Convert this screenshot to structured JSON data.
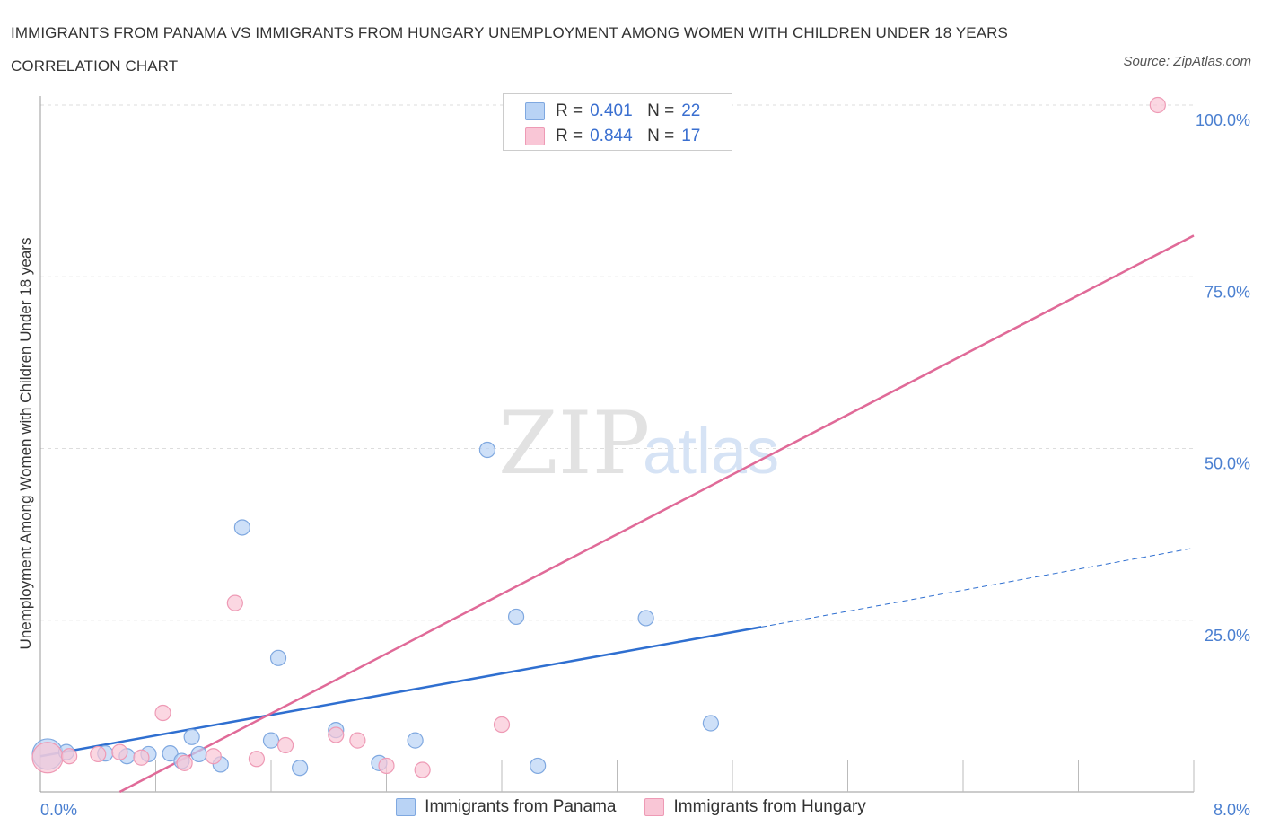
{
  "header": {
    "title": "IMMIGRANTS FROM PANAMA VS IMMIGRANTS FROM HUNGARY UNEMPLOYMENT AMONG WOMEN WITH CHILDREN UNDER 18 YEARS CORRELATION CHART",
    "source": "Source: ZipAtlas.com"
  },
  "legend": {
    "r_label": "R =",
    "n_label": "N =",
    "panama": {
      "r": "0.401",
      "n": "22"
    },
    "hungary": {
      "r": "0.844",
      "n": "17"
    }
  },
  "watermark": {
    "zip": "ZIP",
    "atlas": "atlas"
  },
  "colors": {
    "panama_fill": "#b9d3f5",
    "panama_stroke": "#7fa8e0",
    "panama_line": "#2f6fd0",
    "hungary_fill": "#f9c6d6",
    "hungary_stroke": "#ee9ab5",
    "hungary_line": "#e06a98",
    "grid": "#dddddd",
    "tick_text": "#4a7fd0"
  },
  "chart_data": {
    "type": "scatter",
    "title": "IMMIGRANTS FROM PANAMA VS IMMIGRANTS FROM HUNGARY UNEMPLOYMENT AMONG WOMEN WITH CHILDREN UNDER 18 YEARS CORRELATION CHART",
    "xlabel": "",
    "ylabel": "Unemployment Among Women with Children Under 18 years",
    "xlim": [
      0,
      8
    ],
    "ylim": [
      0,
      100
    ],
    "x_tick_labels": [
      "0.0%",
      "8.0%"
    ],
    "y_ticks": [
      25,
      50,
      75,
      100
    ],
    "y_tick_labels": [
      "25.0%",
      "50.0%",
      "75.0%",
      "100.0%"
    ],
    "grid": true,
    "legend_position": "top-center and bottom",
    "series": [
      {
        "name": "Immigrants from Panama",
        "points": [
          [
            0.05,
            5.5
          ],
          [
            0.18,
            5.8
          ],
          [
            0.45,
            5.6
          ],
          [
            0.6,
            5.2
          ],
          [
            0.75,
            5.5
          ],
          [
            0.9,
            5.6
          ],
          [
            0.98,
            4.5
          ],
          [
            1.05,
            8.0
          ],
          [
            1.1,
            5.5
          ],
          [
            1.25,
            4.0
          ],
          [
            1.4,
            38.5
          ],
          [
            1.6,
            7.5
          ],
          [
            1.65,
            19.5
          ],
          [
            1.8,
            3.5
          ],
          [
            2.05,
            9.0
          ],
          [
            2.35,
            4.2
          ],
          [
            2.6,
            7.5
          ],
          [
            3.1,
            49.8
          ],
          [
            3.3,
            25.5
          ],
          [
            3.45,
            3.8
          ],
          [
            4.2,
            25.3
          ],
          [
            4.65,
            10.0
          ]
        ],
        "trend": {
          "x0": 0,
          "y0": 5.2,
          "x1": 5,
          "y1": 24.0,
          "dashed_to_x": 8,
          "dashed_to_y": 35.5
        }
      },
      {
        "name": "Immigrants from Hungary",
        "points": [
          [
            0.05,
            5.0
          ],
          [
            0.2,
            5.2
          ],
          [
            0.4,
            5.5
          ],
          [
            0.55,
            5.8
          ],
          [
            0.7,
            5.0
          ],
          [
            0.85,
            11.5
          ],
          [
            1.0,
            4.2
          ],
          [
            1.2,
            5.2
          ],
          [
            1.35,
            27.5
          ],
          [
            1.5,
            4.8
          ],
          [
            1.7,
            6.8
          ],
          [
            2.05,
            8.3
          ],
          [
            2.2,
            7.5
          ],
          [
            2.4,
            3.8
          ],
          [
            2.65,
            3.2
          ],
          [
            3.2,
            9.8
          ],
          [
            7.75,
            100.0
          ]
        ],
        "trend": {
          "x0": 0.55,
          "y0": 0,
          "x1": 8,
          "y1": 81.0
        }
      }
    ]
  }
}
